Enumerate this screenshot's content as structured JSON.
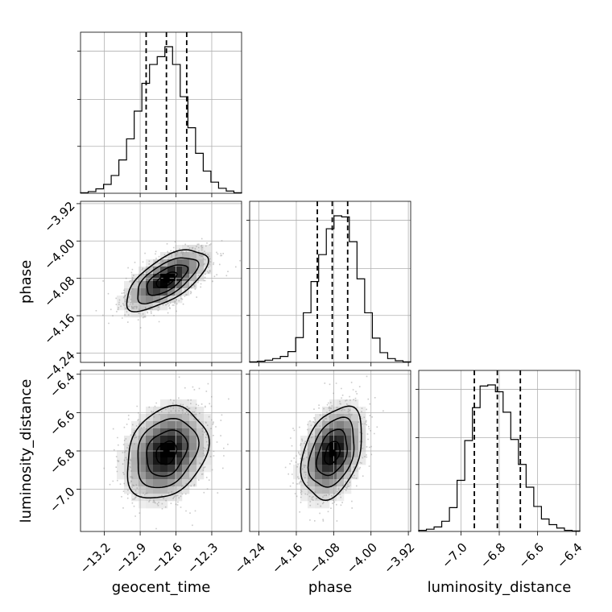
{
  "chart_data": {
    "type": "corner",
    "parameters": [
      "geocent_time",
      "phase",
      "luminosity_distance"
    ],
    "axis_labels": [
      "geocent_time",
      "phase",
      "luminosity_distance"
    ],
    "ranges": [
      [
        -13.4,
        -12.05
      ],
      [
        -4.26,
        -3.915
      ],
      [
        -7.22,
        -6.38
      ]
    ],
    "ticks": [
      [
        -13.2,
        -12.9,
        -12.6,
        -12.3
      ],
      [
        -4.24,
        -4.16,
        -4.08,
        -4.0,
        -3.92
      ],
      [
        -7.0,
        -6.8,
        -6.6,
        -6.4
      ]
    ],
    "tick_labels": [
      [
        "−13.2",
        "−12.9",
        "−12.6",
        "−12.3"
      ],
      [
        "−4.24",
        "−4.16",
        "−4.08",
        "−4.00",
        "−3.92"
      ],
      [
        "−7.0",
        "−6.8",
        "−6.6",
        "−6.4"
      ]
    ],
    "quantiles": [
      [
        -12.85,
        -12.68,
        -12.51
      ],
      [
        -4.115,
        -4.083,
        -4.05
      ],
      [
        -6.93,
        -6.81,
        -6.69
      ]
    ],
    "histograms": [
      {
        "parameter": "geocent_time",
        "counts": [
          1,
          3,
          8,
          16,
          32,
          60,
          98,
          148,
          198,
          232,
          246,
          264,
          232,
          174,
          118,
          72,
          40,
          20,
          9,
          4,
          1
        ]
      },
      {
        "parameter": "phase",
        "counts": [
          1,
          2,
          4,
          7,
          11,
          20,
          46,
          92,
          150,
          200,
          248,
          272,
          270,
          224,
          155,
          92,
          45,
          18,
          7,
          3,
          1
        ]
      },
      {
        "parameter": "luminosity_distance",
        "counts": [
          2,
          4,
          8,
          18,
          42,
          90,
          160,
          218,
          256,
          258,
          246,
          210,
          162,
          118,
          78,
          44,
          22,
          12,
          6,
          2,
          1
        ]
      }
    ],
    "correlations": [
      {
        "x": "geocent_time",
        "y": "phase",
        "rho": 0.65
      },
      {
        "x": "geocent_time",
        "y": "luminosity_distance",
        "rho": 0.25
      },
      {
        "x": "phase",
        "y": "luminosity_distance",
        "rho": 0.35
      }
    ],
    "grid": true
  }
}
